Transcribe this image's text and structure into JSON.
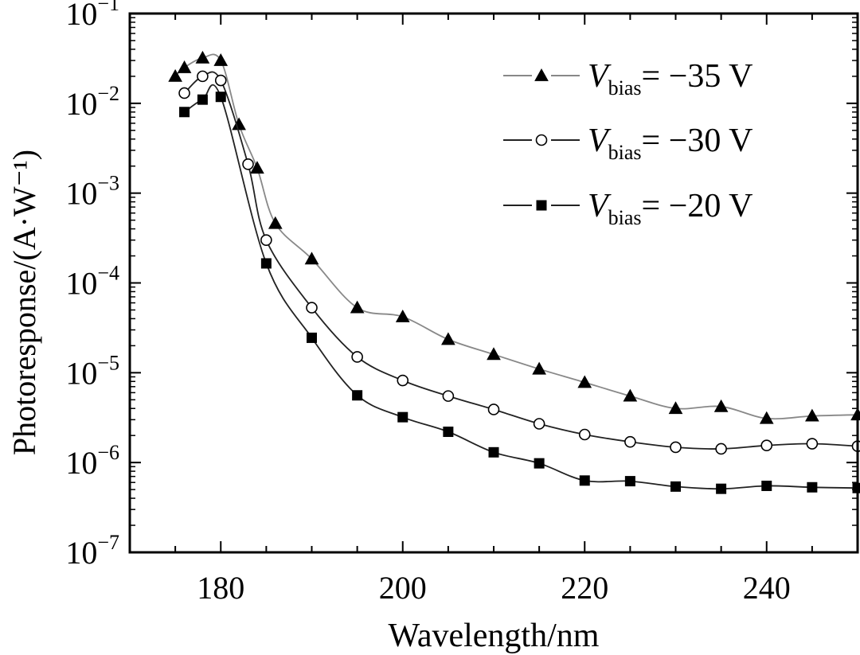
{
  "chart_data": {
    "type": "line",
    "title": "",
    "xlabel": "Wavelength/nm",
    "ylabel": "Photoresponse/(A·W⁻¹)",
    "x_ticks": [
      180,
      200,
      220,
      240
    ],
    "y_ticks": [
      {
        "value": 1e-07,
        "base": "10",
        "exp": "−7"
      },
      {
        "value": 1e-06,
        "base": "10",
        "exp": "−6"
      },
      {
        "value": 1e-05,
        "base": "10",
        "exp": "−5"
      },
      {
        "value": 0.0001,
        "base": "10",
        "exp": "−4"
      },
      {
        "value": 0.001,
        "base": "10",
        "exp": "−3"
      },
      {
        "value": 0.01,
        "base": "10",
        "exp": "−2"
      },
      {
        "value": 0.1,
        "base": "10",
        "exp": "−1"
      }
    ],
    "xlim": [
      170,
      250
    ],
    "ylim": [
      1e-07,
      0.1
    ],
    "yscale": "log",
    "grid": false,
    "legend_position": "top-right",
    "series": [
      {
        "name": "V_bias = −35 V",
        "legend": {
          "symbol": "V",
          "sub": "bias",
          "value": "= −35 V"
        },
        "marker": "filled-triangle",
        "line_color": "#888888",
        "x": [
          175,
          176,
          178,
          180,
          182,
          184,
          186,
          190,
          195,
          200,
          205,
          210,
          215,
          220,
          225,
          230,
          235,
          240,
          245,
          250
        ],
        "y": [
          0.02,
          0.025,
          0.032,
          0.03,
          0.0058,
          0.0019,
          0.00046,
          0.000185,
          5.3e-05,
          4.2e-05,
          2.35e-05,
          1.6e-05,
          1.1e-05,
          7.8e-06,
          5.5e-06,
          4e-06,
          4.2e-06,
          3.1e-06,
          3.3e-06,
          3.4e-06
        ]
      },
      {
        "name": "V_bias = −30 V",
        "legend": {
          "symbol": "V",
          "sub": "bias",
          "value": "= −30 V"
        },
        "marker": "open-circle",
        "line_color": "#222222",
        "x": [
          176,
          178,
          180,
          183,
          185,
          190,
          195,
          200,
          205,
          210,
          215,
          220,
          225,
          230,
          235,
          240,
          245,
          250
        ],
        "y": [
          0.013,
          0.02,
          0.018,
          0.0021,
          0.0003,
          5.3e-05,
          1.5e-05,
          8.2e-06,
          5.5e-06,
          3.9e-06,
          2.7e-06,
          2.05e-06,
          1.7e-06,
          1.48e-06,
          1.42e-06,
          1.55e-06,
          1.62e-06,
          1.52e-06
        ]
      },
      {
        "name": "V_bias = −20 V",
        "legend": {
          "symbol": "V",
          "sub": "bias",
          "value": "= −20 V"
        },
        "marker": "filled-square",
        "line_color": "#222222",
        "x": [
          176,
          178,
          180,
          185,
          190,
          195,
          200,
          205,
          210,
          215,
          220,
          225,
          230,
          235,
          240,
          245,
          250
        ],
        "y": [
          0.008,
          0.011,
          0.0118,
          0.000165,
          2.45e-05,
          5.6e-06,
          3.2e-06,
          2.2e-06,
          1.3e-06,
          9.8e-07,
          6.3e-07,
          6.2e-07,
          5.4e-07,
          5.1e-07,
          5.5e-07,
          5.3e-07,
          5.2e-07
        ]
      }
    ]
  }
}
